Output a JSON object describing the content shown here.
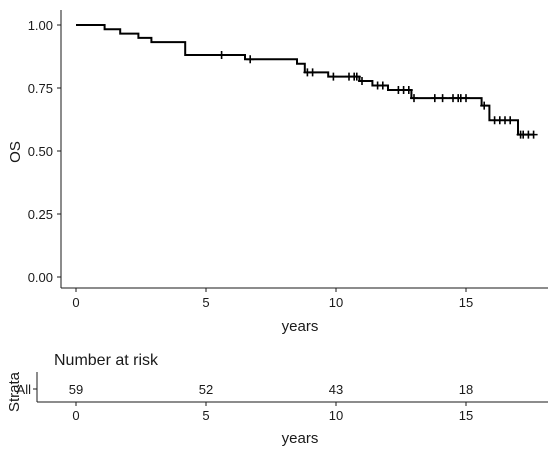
{
  "chart_data": [
    {
      "type": "line",
      "subtype": "kaplan-meier-step",
      "xlabel": "years",
      "ylabel": "OS",
      "xlim": [
        0,
        17.6
      ],
      "ylim": [
        0,
        1.04
      ],
      "xticks": [
        0,
        5,
        10,
        15
      ],
      "yticks": [
        0,
        0.25,
        0.5,
        0.75,
        1.0
      ],
      "ytick_labels": [
        "0.00",
        "0.25",
        "0.50",
        "0.75",
        "1.00"
      ],
      "grid": false,
      "legend": "none",
      "color": "#000000",
      "steps": [
        {
          "x": 0,
          "y": 1.0
        },
        {
          "x": 1.1,
          "y": 0.983
        },
        {
          "x": 1.7,
          "y": 0.966
        },
        {
          "x": 2.4,
          "y": 0.949
        },
        {
          "x": 2.9,
          "y": 0.932
        },
        {
          "x": 3.0,
          "y": 0.932
        },
        {
          "x": 4.2,
          "y": 0.881
        },
        {
          "x": 6.5,
          "y": 0.864
        },
        {
          "x": 8.5,
          "y": 0.846
        },
        {
          "x": 8.8,
          "y": 0.812
        },
        {
          "x": 9.7,
          "y": 0.795
        },
        {
          "x": 10.9,
          "y": 0.778
        },
        {
          "x": 11.4,
          "y": 0.76
        },
        {
          "x": 12.0,
          "y": 0.742
        },
        {
          "x": 12.9,
          "y": 0.71
        },
        {
          "x": 15.6,
          "y": 0.68
        },
        {
          "x": 15.9,
          "y": 0.622
        },
        {
          "x": 17.0,
          "y": 0.565
        }
      ],
      "x_end": 17.6,
      "censored": [
        {
          "x": 5.6,
          "y": 0.881
        },
        {
          "x": 6.7,
          "y": 0.864
        },
        {
          "x": 8.9,
          "y": 0.812
        },
        {
          "x": 9.1,
          "y": 0.812
        },
        {
          "x": 9.9,
          "y": 0.795
        },
        {
          "x": 10.5,
          "y": 0.795
        },
        {
          "x": 10.7,
          "y": 0.795
        },
        {
          "x": 10.8,
          "y": 0.795
        },
        {
          "x": 11.0,
          "y": 0.778
        },
        {
          "x": 11.6,
          "y": 0.76
        },
        {
          "x": 11.8,
          "y": 0.76
        },
        {
          "x": 12.4,
          "y": 0.742
        },
        {
          "x": 12.6,
          "y": 0.742
        },
        {
          "x": 12.8,
          "y": 0.742
        },
        {
          "x": 13.0,
          "y": 0.71
        },
        {
          "x": 13.8,
          "y": 0.71
        },
        {
          "x": 14.1,
          "y": 0.71
        },
        {
          "x": 14.5,
          "y": 0.71
        },
        {
          "x": 14.7,
          "y": 0.71
        },
        {
          "x": 14.8,
          "y": 0.71
        },
        {
          "x": 15.0,
          "y": 0.71
        },
        {
          "x": 15.7,
          "y": 0.68
        },
        {
          "x": 16.1,
          "y": 0.622
        },
        {
          "x": 16.3,
          "y": 0.622
        },
        {
          "x": 16.5,
          "y": 0.622
        },
        {
          "x": 16.7,
          "y": 0.622
        },
        {
          "x": 17.1,
          "y": 0.565
        },
        {
          "x": 17.2,
          "y": 0.565
        },
        {
          "x": 17.4,
          "y": 0.565
        },
        {
          "x": 17.6,
          "y": 0.565
        }
      ]
    },
    {
      "type": "table",
      "title": "Number at risk",
      "ylabel": "Strata",
      "xlabel": "years",
      "xlim": [
        0,
        17.6
      ],
      "xticks": [
        0,
        5,
        10,
        15
      ],
      "rows": [
        {
          "label": "All",
          "times": [
            0,
            5,
            10,
            15
          ],
          "values": [
            59,
            52,
            43,
            18
          ]
        }
      ]
    }
  ]
}
